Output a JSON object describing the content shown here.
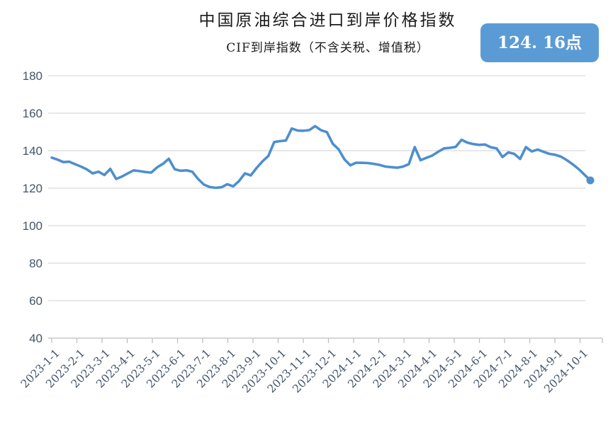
{
  "header": {
    "title": "中国原油综合进口到岸价格指数",
    "subtitle": "CIF到岸指数（不含关税、增值税）",
    "badge_value": "124. 16点"
  },
  "chart_data": {
    "type": "line",
    "title": "中国原油综合进口到岸价格指数",
    "subtitle": "CIF到岸指数（不含关税、增值税）",
    "latest_value": 124.16,
    "latest_value_label": "124. 16点",
    "ylim": [
      40,
      180
    ],
    "y_ticks": [
      180,
      160,
      140,
      120,
      100,
      80,
      60,
      40
    ],
    "grid": "horizontal",
    "legend": "none",
    "x_tick_labels": [
      "2023-1-1",
      "2023-2-1",
      "2023-3-1",
      "2023-4-1",
      "2023-5-1",
      "2023-6-1",
      "2023-7-1",
      "2023-8-1",
      "2023-9-1",
      "2023-10-1",
      "2023-11-1",
      "2023-12-1",
      "2024-1-1",
      "2024-2-1",
      "2024-3-1",
      "2024-4-1",
      "2024-5-1",
      "2024-6-1",
      "2024-7-1",
      "2024-8-1",
      "2024-9-1",
      "2024-10-1"
    ],
    "series": [
      {
        "name": "CIF到岸指数",
        "frequency": "weekly",
        "dates": [
          "2023-1-6",
          "2023-1-13",
          "2023-1-20",
          "2023-1-27",
          "2023-2-3",
          "2023-2-10",
          "2023-2-17",
          "2023-2-24",
          "2023-3-3",
          "2023-3-10",
          "2023-3-17",
          "2023-3-24",
          "2023-3-31",
          "2023-4-7",
          "2023-4-14",
          "2023-4-21",
          "2023-4-28",
          "2023-5-5",
          "2023-5-12",
          "2023-5-19",
          "2023-5-26",
          "2023-6-2",
          "2023-6-9",
          "2023-6-16",
          "2023-6-23",
          "2023-6-30",
          "2023-7-7",
          "2023-7-14",
          "2023-7-21",
          "2023-7-28",
          "2023-8-4",
          "2023-8-11",
          "2023-8-18",
          "2023-8-25",
          "2023-9-1",
          "2023-9-8",
          "2023-9-15",
          "2023-9-22",
          "2023-9-29",
          "2023-10-6",
          "2023-10-13",
          "2023-10-20",
          "2023-10-27",
          "2023-11-3",
          "2023-11-10",
          "2023-11-17",
          "2023-11-24",
          "2023-12-1",
          "2023-12-8",
          "2023-12-15",
          "2023-12-22",
          "2023-12-29",
          "2024-1-5",
          "2024-1-12",
          "2024-1-19",
          "2024-1-26",
          "2024-2-2",
          "2024-2-9",
          "2024-2-16",
          "2024-2-23",
          "2024-3-1",
          "2024-3-8",
          "2024-3-15",
          "2024-3-22",
          "2024-3-29",
          "2024-4-5",
          "2024-4-12",
          "2024-4-19",
          "2024-4-26",
          "2024-5-3",
          "2024-5-10",
          "2024-5-17",
          "2024-5-24",
          "2024-5-31",
          "2024-6-7",
          "2024-6-14",
          "2024-6-21",
          "2024-6-28",
          "2024-7-5",
          "2024-7-12",
          "2024-7-19",
          "2024-7-26",
          "2024-8-2",
          "2024-8-9",
          "2024-8-16",
          "2024-8-23",
          "2024-8-30",
          "2024-9-6",
          "2024-9-13",
          "2024-9-20",
          "2024-9-27",
          "2024-10-4",
          "2024-10-11"
        ],
        "values": [
          136.3,
          135.2,
          133.9,
          134.1,
          132.8,
          131.5,
          130.0,
          127.9,
          128.8,
          127.0,
          130.3,
          124.9,
          126.2,
          127.9,
          129.5,
          129.1,
          128.6,
          128.3,
          131.1,
          133.0,
          135.7,
          130.1,
          129.3,
          129.5,
          128.8,
          124.9,
          121.9,
          120.6,
          120.2,
          120.5,
          122.1,
          121.0,
          123.8,
          127.9,
          126.8,
          130.8,
          134.3,
          137.2,
          144.6,
          145.1,
          145.4,
          151.8,
          150.7,
          150.6,
          151.0,
          153.1,
          150.9,
          149.9,
          143.7,
          140.7,
          135.4,
          132.2,
          133.6,
          133.5,
          133.4,
          133.0,
          132.4,
          131.5,
          131.2,
          130.9,
          131.5,
          132.8,
          141.9,
          134.9,
          136.2,
          137.4,
          139.4,
          141.2,
          141.5,
          142.0,
          145.8,
          144.3,
          143.5,
          143.1,
          143.3,
          141.8,
          141.2,
          136.6,
          139.1,
          138.3,
          135.6,
          141.9,
          139.6,
          140.6,
          139.4,
          138.3,
          137.8,
          136.8,
          134.9,
          132.7,
          130.2,
          127.2,
          124.16
        ]
      }
    ],
    "colors": {
      "line": "#4E8FCE",
      "marker": "#4E8FCE",
      "badge_background": "#5B9BD5",
      "badge_text": "#FFFFFF",
      "axis_labels": "#44546A",
      "gridline": "#D9D9D9",
      "axis_line": "#BFBFBF",
      "title_text": "#1B1B1B"
    }
  }
}
